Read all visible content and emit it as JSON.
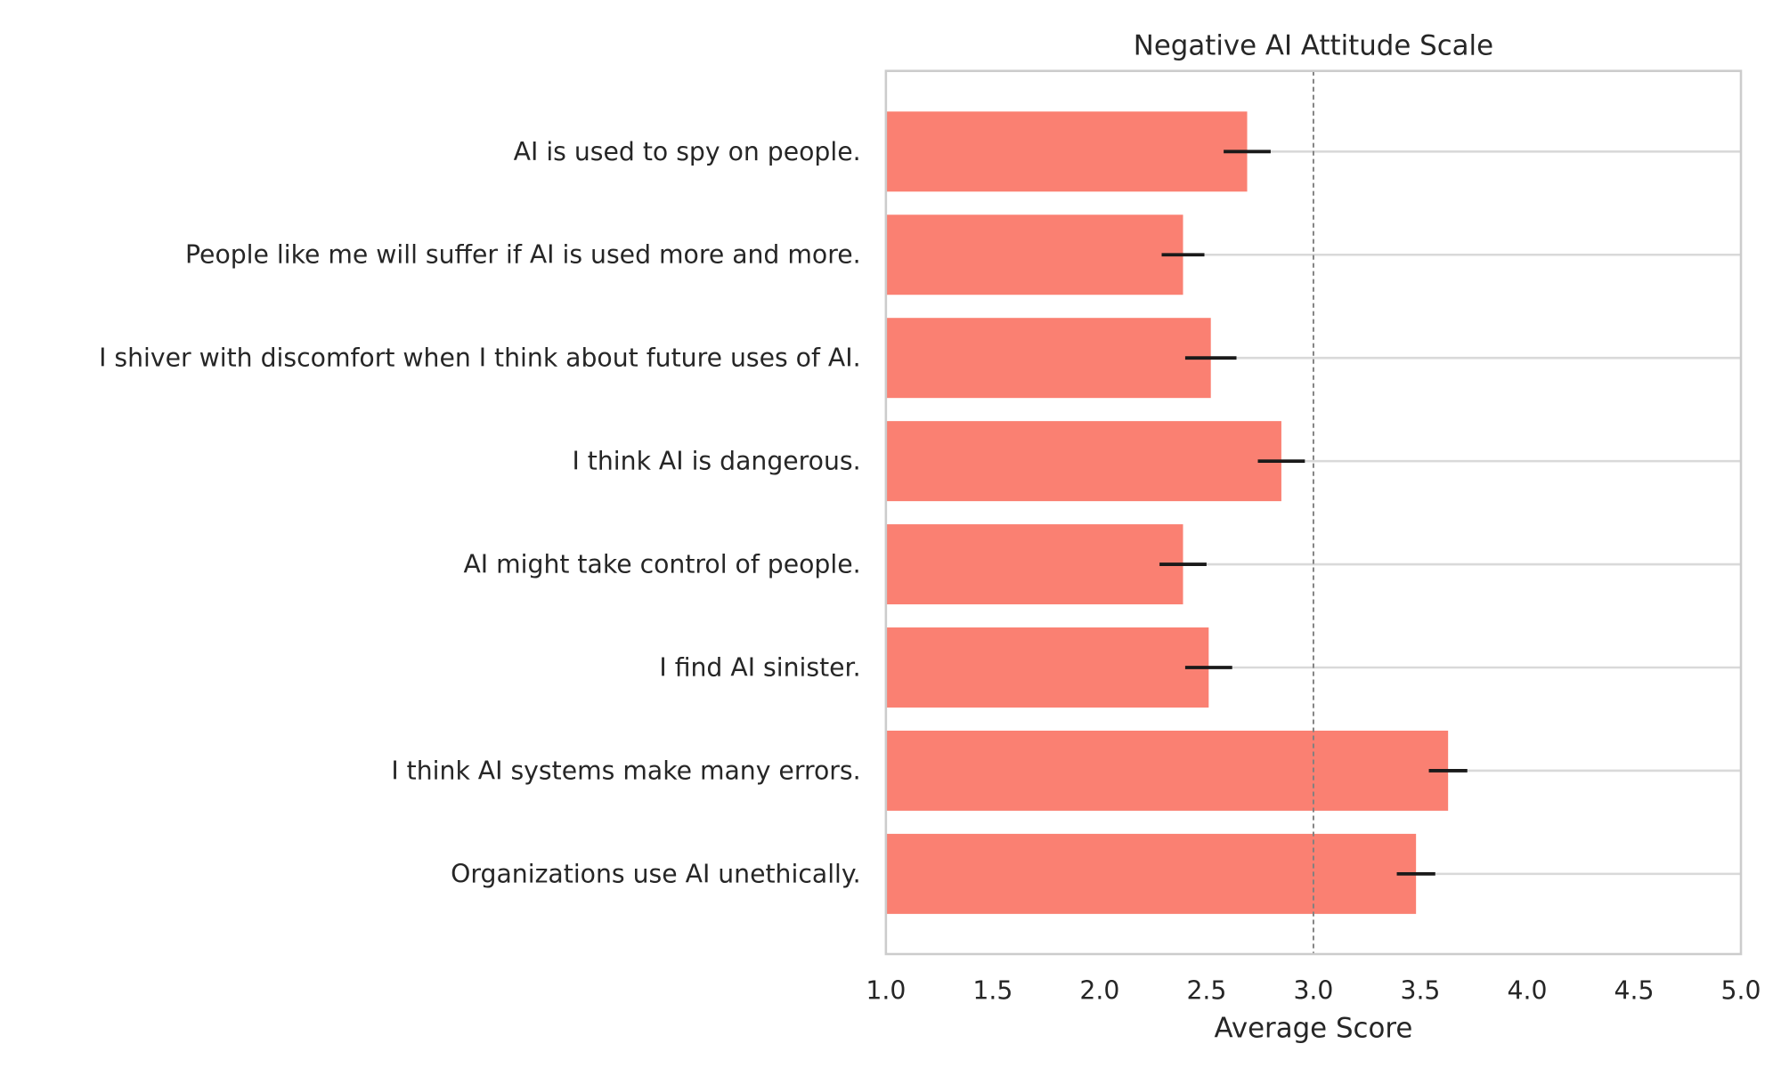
{
  "chart_data": {
    "type": "bar",
    "orientation": "horizontal",
    "title": "Negative AI Attitude Scale",
    "xlabel": "Average Score",
    "ylabel": "",
    "xlim": [
      1.0,
      5.0
    ],
    "xticks": [
      "1.0",
      "1.5",
      "2.0",
      "2.5",
      "3.0",
      "3.5",
      "4.0",
      "4.5",
      "5.0"
    ],
    "reference_line": 3.0,
    "grid": "horizontal",
    "bar_color": "#fa8072",
    "error_color": "#1a1a1a",
    "reference_line_color": "#808080",
    "categories": [
      "AI is used to spy on people.",
      "People like me will suffer if AI is used more and more.",
      "I shiver with discomfort when I think about future uses of AI.",
      "I think AI is dangerous.",
      "AI might take control of people.",
      "I find AI sinister.",
      "I think AI systems make many errors.",
      "Organizations use AI unethically."
    ],
    "values": [
      2.69,
      2.39,
      2.52,
      2.85,
      2.39,
      2.51,
      3.63,
      3.48
    ],
    "errors": [
      0.11,
      0.1,
      0.12,
      0.11,
      0.11,
      0.11,
      0.09,
      0.09
    ]
  }
}
